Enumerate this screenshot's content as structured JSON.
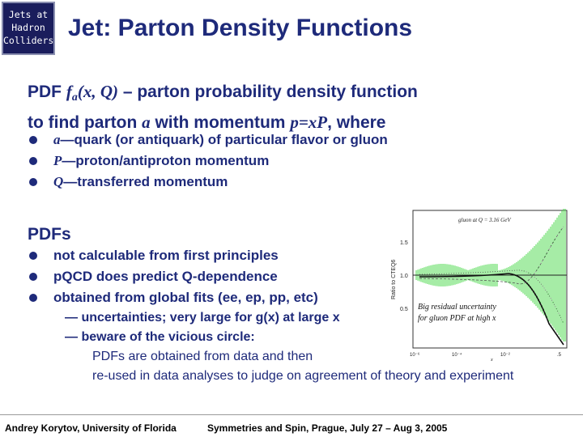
{
  "badge": {
    "line1": "Jets at",
    "line2": "Hadron",
    "line3": "Colliders"
  },
  "title": "Jet: Parton Density Functions",
  "intro": {
    "l1_a": "PDF ",
    "l1_f": "f",
    "l1_sub": "a",
    "l1_args": "(x, Q)",
    "l1_b": " – parton probability density function",
    "l2_a": "to find parton ",
    "l2_var": "a",
    "l2_b": " with momentum ",
    "l2_mom": "p=xP",
    "l2_c": ", where"
  },
  "defs": [
    {
      "sym": "a",
      "text": "—quark (or antiquark) of particular flavor or gluon"
    },
    {
      "sym": "P",
      "text": "—proton/antiproton momentum"
    },
    {
      "sym": "Q",
      "text": "—transferred momentum"
    }
  ],
  "pdfs": {
    "heading": "PDFs",
    "items": [
      "not calculable from first principles",
      "pQCD does predict Q-dependence",
      "obtained from global fits (ee, ep, pp, etc)"
    ],
    "dash1": "— uncertainties; very large for g(x) at large x",
    "dash2": "— beware of the vicious circle:",
    "note1": "PDFs are obtained from data and then",
    "note2": "re-used in data analyses to judge on agreement of theory and experiment"
  },
  "figure": {
    "label": "gluon at  Q = 3.16 GeV",
    "ylabel": "Ratio to CTEQ6",
    "annotation_1": "Big residual uncertainty",
    "annotation_2": "for gluon PDF at high x",
    "xlabel": "x",
    "yticks": [
      "1.5",
      "1.0",
      "0.5"
    ],
    "xticks": [
      "10⁻⁶",
      "10⁻⁴",
      "10⁻²",
      ".5"
    ],
    "band_color": "#4cd94c"
  },
  "footer": {
    "author": "Andrey Korytov, University of Florida",
    "event": "Symmetries and Spin, Prague, July 27 – Aug 3, 2005"
  }
}
